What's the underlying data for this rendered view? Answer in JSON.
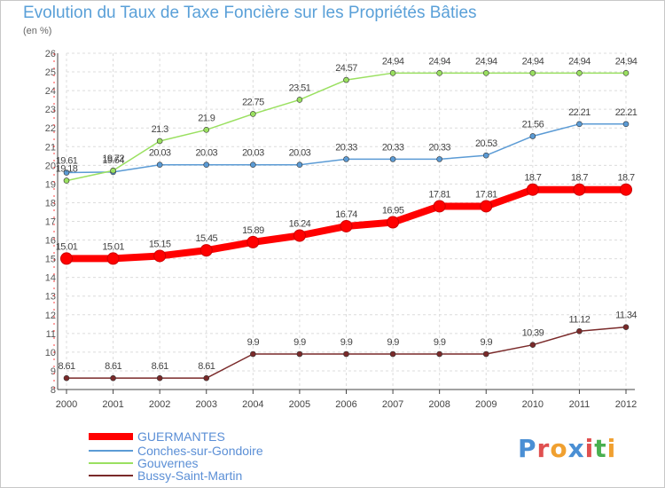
{
  "title": "Evolution du Taux de Taxe Foncière sur les Propriétés Bâties",
  "unit_label": "(en %)",
  "logo_text": "Proxiti",
  "logo_colors": [
    "#4a8fd4",
    "#e05050",
    "#f0a030",
    "#4a8fd4",
    "#e05050",
    "#4ab050",
    "#f0a030"
  ],
  "chart_data": {
    "type": "line",
    "title": "Evolution du Taux de Taxe Foncière sur les Propriétés Bâties",
    "ylabel": "(en %)",
    "xlabel": "",
    "x": [
      "2000",
      "2001",
      "2002",
      "2003",
      "2004",
      "2005",
      "2006",
      "2007",
      "2008",
      "2009",
      "2010",
      "2011",
      "2012"
    ],
    "ylim": [
      8,
      26
    ],
    "yticks": [
      "8",
      "9",
      "10",
      "11",
      "12",
      "13",
      "14",
      "15",
      "16",
      "17",
      "18",
      "19",
      "20",
      "21",
      "22",
      "23",
      "24",
      "25",
      "26"
    ],
    "grid": true,
    "legend_position": "bottom-left",
    "series": [
      {
        "name": "GUERMANTES",
        "color": "#ff0000",
        "values": [
          15.01,
          15.01,
          15.15,
          15.45,
          15.89,
          16.24,
          16.74,
          16.95,
          17.81,
          17.81,
          18.7,
          18.7,
          18.7
        ],
        "labels": [
          "15.01",
          "15.01",
          "15.15",
          "15.45",
          "15.89",
          "16.24",
          "16.74",
          "16.95",
          "17.81",
          "17.81",
          "18.7",
          "18.7",
          "18.7"
        ]
      },
      {
        "name": "Conches-sur-Gondoire",
        "color": "#5b9bd5",
        "values": [
          19.61,
          19.64,
          20.03,
          20.03,
          20.03,
          20.03,
          20.33,
          20.33,
          20.33,
          20.53,
          21.56,
          22.21,
          22.21
        ],
        "labels": [
          "19.61",
          "19.64",
          "20.03",
          "20.03",
          "20.03",
          "20.03",
          "20.33",
          "20.33",
          "20.33",
          "20.53",
          "21.56",
          "22.21",
          "22.21"
        ]
      },
      {
        "name": "Gouvernes",
        "color": "#9ae060",
        "values": [
          19.18,
          19.72,
          21.3,
          21.9,
          22.75,
          23.51,
          24.57,
          24.94,
          24.94,
          24.94,
          24.94,
          24.94,
          24.94
        ],
        "labels": [
          "19.18",
          "19.72",
          "21.3",
          "21.9",
          "22.75",
          "23.51",
          "24.57",
          "24.94",
          "24.94",
          "24.94",
          "24.94",
          "24.94",
          "24.94"
        ]
      },
      {
        "name": "Bussy-Saint-Martin",
        "color": "#7a2a2a",
        "values": [
          8.61,
          8.61,
          8.61,
          8.61,
          9.9,
          9.9,
          9.9,
          9.9,
          9.9,
          9.9,
          10.39,
          11.12,
          11.34
        ],
        "labels": [
          "8.61",
          "8.61",
          "8.61",
          "8.61",
          "9.9",
          "9.9",
          "9.9",
          "9.9",
          "9.9",
          "9.9",
          "10.39",
          "11.12",
          "11.34"
        ]
      }
    ]
  }
}
